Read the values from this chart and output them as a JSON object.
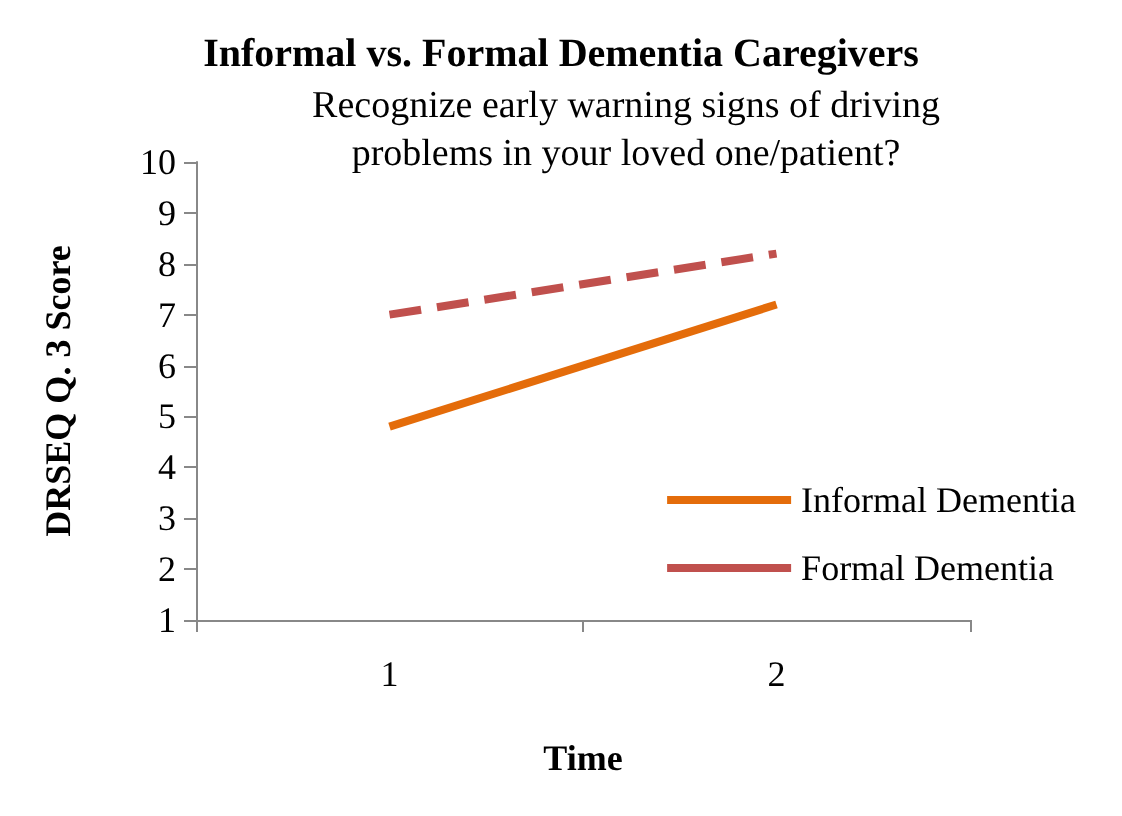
{
  "chart_data": {
    "type": "line",
    "title": "Informal vs. Formal Dementia Caregivers",
    "subtitle": "Recognize early warning signs of driving\nproblems in your loved one/patient?",
    "xlabel": "Time",
    "ylabel": "DRSEQ Q. 3 Score",
    "categories": [
      "1",
      "2"
    ],
    "series": [
      {
        "name": "Informal Dementia",
        "color": "#e46c0a",
        "values": [
          4.8,
          7.2
        ],
        "line_style": "solid"
      },
      {
        "name": "Formal Dementia",
        "color": "#c0504d",
        "values": [
          7.0,
          8.2
        ],
        "line_style": "dashed"
      }
    ],
    "ylim": [
      1,
      10
    ],
    "yticks": [
      1,
      2,
      3,
      4,
      5,
      6,
      7,
      8,
      9,
      10
    ],
    "grid": false,
    "legend": "bottom right",
    "marker": "none"
  }
}
